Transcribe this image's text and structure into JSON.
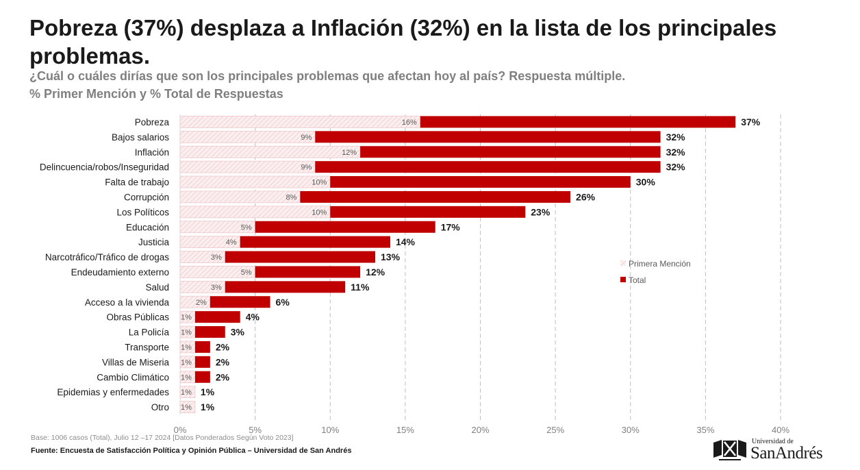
{
  "title": "Pobreza (37%) desplaza a Inflación (32%) en la lista de los principales problemas.",
  "subtitle1": "¿Cuál o cuáles dirías que son los principales problemas que afectan hoy al país? Respuesta múltiple.",
  "subtitle2": "% Primer Mención y % Total de Respuestas",
  "chart_data": {
    "type": "bar",
    "orientation": "horizontal",
    "categories": [
      "Pobreza",
      "Bajos salarios",
      "Inflación",
      "Delincuencia/robos/Inseguridad",
      "Falta de trabajo",
      "Corrupción",
      "Los Políticos",
      "Educación",
      "Justicia",
      "Narcotráfico/Tráfico de drogas",
      "Endeudamiento externo",
      "Salud",
      "Acceso a la vivienda",
      "Obras Públicas",
      "La Policía",
      "Transporte",
      "Villas de Miseria",
      "Cambio Climático",
      "Epidemias y enfermedades",
      "Otro"
    ],
    "series": [
      {
        "name": "Primera Mención",
        "color": "#f6d9dc",
        "values": [
          16,
          9,
          12,
          9,
          10,
          8,
          10,
          5,
          4,
          3,
          5,
          3,
          2,
          1,
          1,
          1,
          1,
          1,
          1,
          1
        ],
        "labels": [
          "16%",
          "9%",
          "12%",
          "9%",
          "10%",
          "8%",
          "10%",
          "5%",
          "4%",
          "3%",
          "5%",
          "3%",
          "2%",
          "1%",
          "1%",
          "1%",
          "1%",
          "1%",
          "1%",
          "1%"
        ]
      },
      {
        "name": "Total",
        "color": "#c00000",
        "values": [
          37,
          32,
          32,
          32,
          30,
          26,
          23,
          17,
          14,
          13,
          12,
          11,
          6,
          4,
          3,
          2,
          2,
          2,
          1,
          1
        ],
        "labels": [
          "37%",
          "32%",
          "32%",
          "32%",
          "30%",
          "26%",
          "23%",
          "17%",
          "14%",
          "13%",
          "12%",
          "11%",
          "6%",
          "4%",
          "3%",
          "2%",
          "2%",
          "2%",
          "1%",
          "1%"
        ]
      }
    ],
    "xlim": [
      0,
      40
    ],
    "xticks": [
      "0%",
      "5%",
      "10%",
      "15%",
      "20%",
      "25%",
      "30%",
      "35%",
      "40%"
    ],
    "grid": true,
    "legend": "right"
  },
  "base_note": "Base: 1006 casos (Total), Julio 12 –17 2024 [Datos Ponderados Según Voto 2023]",
  "source": "Fuente: Encuesta de Satisfacción Política y Opinión Pública – Universidad de San Andrés",
  "logo": {
    "top": "Universidad de",
    "main": "SanAndrés"
  }
}
